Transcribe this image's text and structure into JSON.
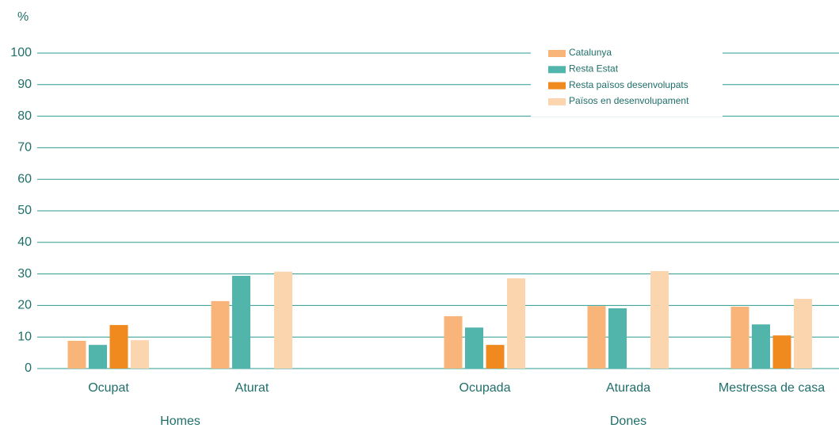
{
  "chart_data": {
    "type": "bar",
    "y_label": "%",
    "groups": [
      {
        "name": "Homes",
        "categories": [
          "Ocupat",
          "Aturat"
        ]
      },
      {
        "name": "Dones",
        "categories": [
          "Ocupada",
          "Aturada",
          "Mestressa de casa"
        ]
      }
    ],
    "series": [
      {
        "name": "Catalunya",
        "color": "#f9b47a",
        "values": [
          8.8,
          21.4,
          16.6,
          19.8,
          19.6
        ]
      },
      {
        "name": "Resta Estat",
        "color": "#52b5ac",
        "values": [
          7.5,
          29.4,
          13,
          19.1,
          14
        ]
      },
      {
        "name": "Resta països desenvolupats",
        "color": "#f0891e",
        "values": [
          13.8,
          null,
          7.5,
          null,
          10.5
        ]
      },
      {
        "name": "Països en desenvolupament",
        "color": "#fbd5ad",
        "values": [
          9,
          30.7,
          28.6,
          30.9,
          22.1
        ]
      }
    ],
    "ylim": [
      0,
      100
    ],
    "yticks": [
      0,
      10,
      20,
      30,
      40,
      50,
      60,
      70,
      80,
      90,
      100
    ],
    "grid": true,
    "legend": "top-right"
  }
}
